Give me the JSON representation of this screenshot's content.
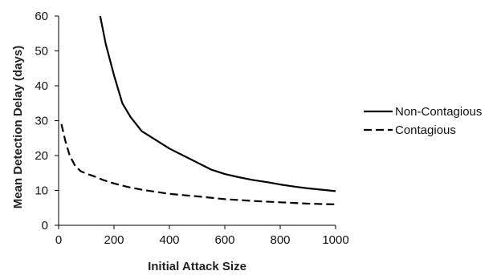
{
  "chart_data": {
    "type": "line",
    "title": "",
    "xlabel": "Initial Attack Size",
    "ylabel": "Mean Detection Delay (days)",
    "xlim": [
      0,
      1000
    ],
    "ylim": [
      0,
      60
    ],
    "xticks": [
      0,
      200,
      400,
      600,
      800,
      1000
    ],
    "yticks": [
      0,
      10,
      20,
      30,
      40,
      50,
      60
    ],
    "grid": false,
    "legend_position": "right",
    "series": [
      {
        "name": "Non-Contagious",
        "color": "#000000",
        "style": "solid",
        "x": [
          150,
          170,
          200,
          230,
          260,
          300,
          350,
          400,
          450,
          500,
          550,
          600,
          650,
          700,
          750,
          800,
          850,
          900,
          950,
          1000
        ],
        "y": [
          60,
          52,
          43,
          35,
          31,
          27,
          24.5,
          22,
          20,
          18,
          16,
          14.7,
          13.8,
          13,
          12.4,
          11.7,
          11.1,
          10.6,
          10.2,
          9.8
        ]
      },
      {
        "name": "Contagious",
        "color": "#000000",
        "style": "dashed",
        "x": [
          10,
          25,
          40,
          60,
          80,
          100,
          130,
          160,
          200,
          250,
          300,
          400,
          500,
          600,
          700,
          800,
          900,
          1000
        ],
        "y": [
          29,
          24,
          20,
          17,
          15.5,
          14.8,
          14,
          13,
          12,
          11,
          10.2,
          9,
          8.3,
          7.5,
          7,
          6.6,
          6.2,
          6
        ]
      }
    ]
  }
}
